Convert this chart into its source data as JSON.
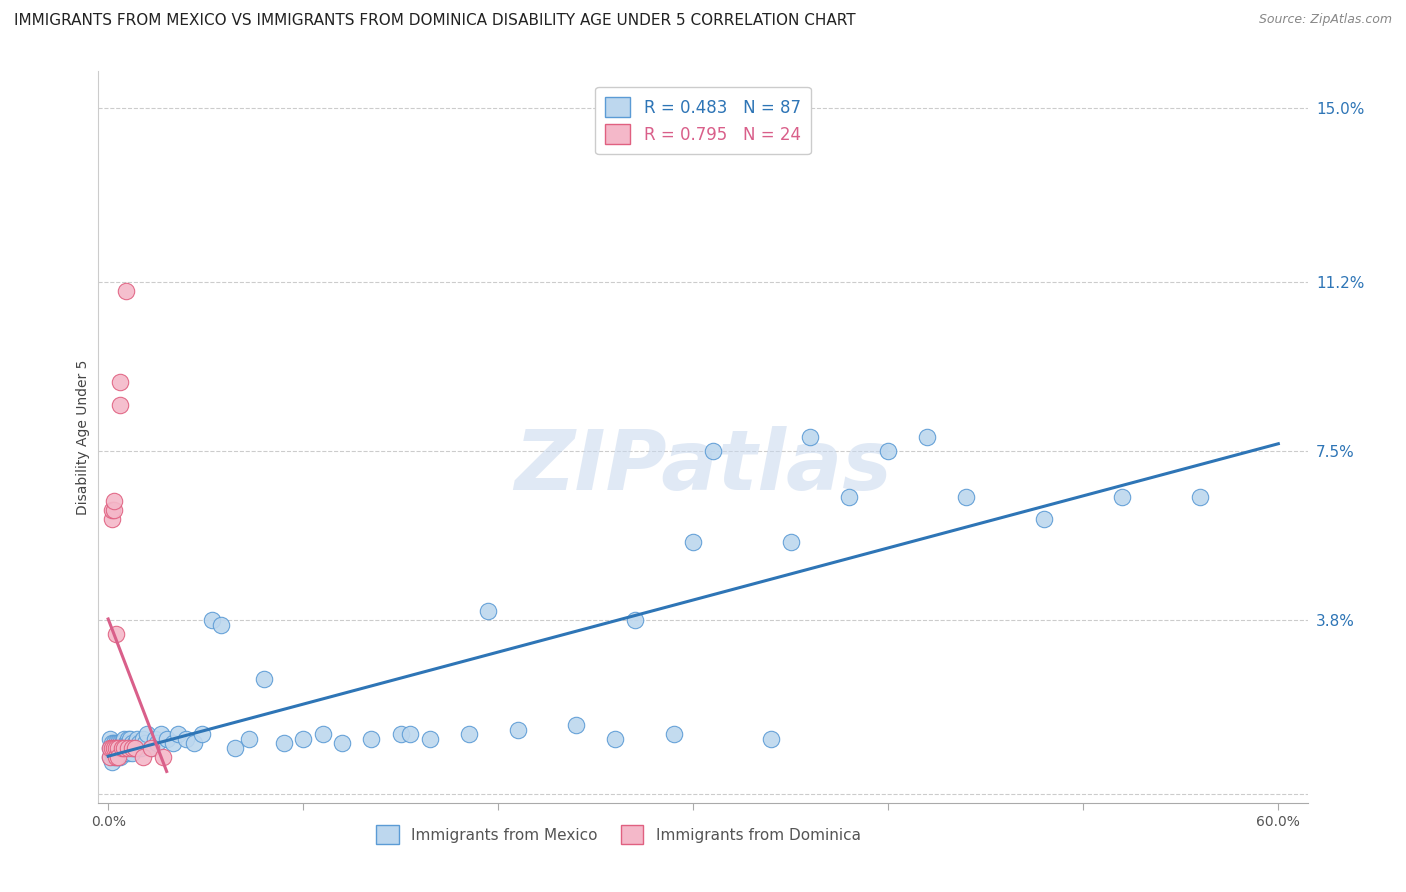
{
  "title": "IMMIGRANTS FROM MEXICO VS IMMIGRANTS FROM DOMINICA DISABILITY AGE UNDER 5 CORRELATION CHART",
  "source": "Source: ZipAtlas.com",
  "ylabel": "Disability Age Under 5",
  "watermark": "ZIPatlas",
  "xlim": [
    -0.005,
    0.615
  ],
  "ylim": [
    -0.002,
    0.158
  ],
  "yticks": [
    0.0,
    0.038,
    0.075,
    0.112,
    0.15
  ],
  "ytick_labels": [
    "",
    "3.8%",
    "7.5%",
    "11.2%",
    "15.0%"
  ],
  "xticks": [
    0.0,
    0.1,
    0.2,
    0.3,
    0.4,
    0.5,
    0.6
  ],
  "xtick_labels": [
    "0.0%",
    "",
    "",
    "",
    "",
    "",
    "60.0%"
  ],
  "mexico_color": "#bdd7ee",
  "mexico_edge_color": "#5b9bd5",
  "dominica_color": "#f4b8c9",
  "dominica_edge_color": "#e06080",
  "mexico_line_color": "#2e75b6",
  "dominica_line_color": "#d95f8a",
  "title_fontsize": 11,
  "axis_label_fontsize": 10,
  "tick_fontsize": 10,
  "legend_fontsize": 12,
  "watermark_fontsize": 60,
  "source_fontsize": 9,
  "mexico_scatter_x": [
    0.001,
    0.001,
    0.001,
    0.002,
    0.002,
    0.002,
    0.002,
    0.003,
    0.003,
    0.003,
    0.003,
    0.004,
    0.004,
    0.004,
    0.005,
    0.005,
    0.005,
    0.006,
    0.006,
    0.006,
    0.006,
    0.007,
    0.007,
    0.007,
    0.008,
    0.008,
    0.008,
    0.009,
    0.009,
    0.01,
    0.01,
    0.01,
    0.011,
    0.011,
    0.012,
    0.012,
    0.013,
    0.014,
    0.015,
    0.015,
    0.016,
    0.017,
    0.018,
    0.019,
    0.02,
    0.022,
    0.024,
    0.025,
    0.027,
    0.03,
    0.033,
    0.036,
    0.04,
    0.044,
    0.048,
    0.053,
    0.058,
    0.065,
    0.072,
    0.08,
    0.09,
    0.1,
    0.11,
    0.12,
    0.135,
    0.15,
    0.165,
    0.185,
    0.21,
    0.24,
    0.27,
    0.31,
    0.36,
    0.4,
    0.44,
    0.48,
    0.52,
    0.56,
    0.3,
    0.35,
    0.42,
    0.34,
    0.26,
    0.38,
    0.29,
    0.195,
    0.155
  ],
  "mexico_scatter_y": [
    0.01,
    0.008,
    0.012,
    0.009,
    0.011,
    0.007,
    0.01,
    0.009,
    0.011,
    0.008,
    0.01,
    0.009,
    0.011,
    0.01,
    0.009,
    0.011,
    0.008,
    0.01,
    0.009,
    0.011,
    0.008,
    0.01,
    0.009,
    0.011,
    0.01,
    0.012,
    0.009,
    0.011,
    0.01,
    0.012,
    0.009,
    0.011,
    0.01,
    0.012,
    0.011,
    0.009,
    0.01,
    0.011,
    0.01,
    0.012,
    0.011,
    0.01,
    0.012,
    0.011,
    0.013,
    0.01,
    0.012,
    0.011,
    0.013,
    0.012,
    0.011,
    0.013,
    0.012,
    0.011,
    0.013,
    0.038,
    0.037,
    0.01,
    0.012,
    0.025,
    0.011,
    0.012,
    0.013,
    0.011,
    0.012,
    0.013,
    0.012,
    0.013,
    0.014,
    0.015,
    0.038,
    0.075,
    0.078,
    0.075,
    0.065,
    0.06,
    0.065,
    0.065,
    0.055,
    0.055,
    0.078,
    0.012,
    0.012,
    0.065,
    0.013,
    0.04,
    0.013
  ],
  "dominica_scatter_x": [
    0.001,
    0.001,
    0.002,
    0.002,
    0.002,
    0.003,
    0.003,
    0.003,
    0.004,
    0.004,
    0.004,
    0.005,
    0.005,
    0.006,
    0.006,
    0.007,
    0.008,
    0.009,
    0.01,
    0.012,
    0.014,
    0.018,
    0.022,
    0.028
  ],
  "dominica_scatter_y": [
    0.008,
    0.01,
    0.06,
    0.062,
    0.01,
    0.01,
    0.062,
    0.064,
    0.01,
    0.008,
    0.035,
    0.01,
    0.008,
    0.085,
    0.09,
    0.01,
    0.01,
    0.11,
    0.01,
    0.01,
    0.01,
    0.008,
    0.01,
    0.008
  ]
}
